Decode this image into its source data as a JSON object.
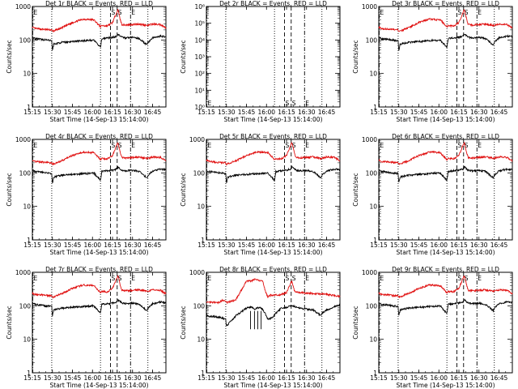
{
  "chart_data": {
    "type": "line",
    "shared": {
      "xlabel": "Start Time (14-Sep-13 15:14:00)",
      "ylabel": "Counts/sec",
      "xlim": [
        0,
        100
      ],
      "xticks": [
        {
          "v": 0,
          "label": "15:15"
        },
        {
          "v": 15,
          "label": "15:30"
        },
        {
          "v": 30,
          "label": "15:45"
        },
        {
          "v": 45,
          "label": "16:00"
        },
        {
          "v": 60,
          "label": "16:15"
        },
        {
          "v": 75,
          "label": "16:30"
        },
        {
          "v": 90,
          "label": "16:45"
        }
      ],
      "markers": [
        {
          "v": 0.3,
          "label": "E",
          "style": "dashdot"
        },
        {
          "v": 14.5,
          "label": "",
          "style": "dotted"
        },
        {
          "v": 51,
          "label": "",
          "style": "dotted"
        },
        {
          "v": 58.5,
          "label": "S",
          "style": "dashed"
        },
        {
          "v": 63.5,
          "label": "S",
          "style": "dashed"
        },
        {
          "v": 73.5,
          "label": "E",
          "style": "dashdot"
        },
        {
          "v": 86.5,
          "label": "",
          "style": "dotted"
        }
      ]
    },
    "panels": [
      {
        "title": "Det 1r BLACK = Events, RED = LLD",
        "variant": "normal",
        "ylog": true,
        "ylim": [
          1,
          1000
        ],
        "yticks": [
          {
            "v": 1,
            "label": "1"
          },
          {
            "v": 10,
            "label": "10"
          },
          {
            "v": 100,
            "label": "100"
          },
          {
            "v": 1000,
            "label": "1000"
          }
        ]
      },
      {
        "title": "Det 2r BLACK = Events, RED = LLD",
        "variant": "empty",
        "ylog": true,
        "ylim": [
          1,
          1000000
        ],
        "yticks": [
          {
            "v": 1,
            "label": "10⁰"
          },
          {
            "v": 10,
            "label": "10¹"
          },
          {
            "v": 100,
            "label": "10²"
          },
          {
            "v": 1000,
            "label": "10³"
          },
          {
            "v": 10000,
            "label": "10⁴"
          },
          {
            "v": 100000,
            "label": "10⁵"
          },
          {
            "v": 1000000,
            "label": "10⁶"
          }
        ]
      },
      {
        "title": "Det 3r BLACK = Events, RED = LLD",
        "variant": "normal",
        "ylog": true,
        "ylim": [
          1,
          1000
        ],
        "yticks": [
          {
            "v": 1,
            "label": "1"
          },
          {
            "v": 10,
            "label": "10"
          },
          {
            "v": 100,
            "label": "100"
          },
          {
            "v": 1000,
            "label": "1000"
          }
        ]
      },
      {
        "title": "Det 4r BLACK = Events, RED = LLD",
        "variant": "normal",
        "ylog": true,
        "ylim": [
          1,
          1000
        ],
        "yticks": [
          {
            "v": 1,
            "label": "1"
          },
          {
            "v": 10,
            "label": "10"
          },
          {
            "v": 100,
            "label": "100"
          },
          {
            "v": 1000,
            "label": "1000"
          }
        ]
      },
      {
        "title": "Det 5r BLACK = Events, RED = LLD",
        "variant": "normal",
        "ylog": true,
        "ylim": [
          1,
          1000
        ],
        "yticks": [
          {
            "v": 1,
            "label": "1"
          },
          {
            "v": 10,
            "label": "10"
          },
          {
            "v": 100,
            "label": "100"
          },
          {
            "v": 1000,
            "label": "1000"
          }
        ]
      },
      {
        "title": "Det 6r BLACK = Events, RED = LLD",
        "variant": "normal",
        "ylog": true,
        "ylim": [
          1,
          1000
        ],
        "yticks": [
          {
            "v": 1,
            "label": "1"
          },
          {
            "v": 10,
            "label": "10"
          },
          {
            "v": 100,
            "label": "100"
          },
          {
            "v": 1000,
            "label": "1000"
          }
        ]
      },
      {
        "title": "Det 7r BLACK = Events, RED = LLD",
        "variant": "normal",
        "ylog": true,
        "ylim": [
          1,
          1000
        ],
        "yticks": [
          {
            "v": 1,
            "label": "1"
          },
          {
            "v": 10,
            "label": "10"
          },
          {
            "v": 100,
            "label": "100"
          },
          {
            "v": 1000,
            "label": "1000"
          }
        ]
      },
      {
        "title": "Det 8r BLACK = Events, RED = LLD",
        "variant": "noisy",
        "ylog": true,
        "ylim": [
          1,
          1000
        ],
        "yticks": [
          {
            "v": 1,
            "label": "1"
          },
          {
            "v": 10,
            "label": "10"
          },
          {
            "v": 100,
            "label": "100"
          },
          {
            "v": 1000,
            "label": "1000"
          }
        ]
      },
      {
        "title": "Det 9r BLACK = Events, RED = LLD",
        "variant": "normal",
        "ylog": true,
        "ylim": [
          1,
          1000
        ],
        "yticks": [
          {
            "v": 1,
            "label": "1"
          },
          {
            "v": 10,
            "label": "10"
          },
          {
            "v": 100,
            "label": "100"
          },
          {
            "v": 1000,
            "label": "1000"
          }
        ]
      }
    ],
    "series_profile": {
      "lld": {
        "x": [
          0,
          2,
          10,
          14.5,
          15,
          22,
          30,
          38,
          46,
          51,
          52,
          56,
          60,
          63,
          64,
          65,
          66,
          67,
          70,
          75,
          80,
          86,
          90,
          96,
          100
        ],
        "y": [
          240,
          220,
          205,
          200,
          180,
          230,
          330,
          420,
          400,
          250,
          270,
          260,
          330,
          650,
          800,
          560,
          380,
          290,
          280,
          290,
          300,
          270,
          300,
          290,
          230
        ]
      },
      "events": {
        "x": [
          0,
          2,
          10,
          14.5,
          15,
          16,
          22,
          30,
          38,
          46,
          51,
          52,
          56,
          60,
          63,
          64,
          65,
          66,
          67,
          70,
          75,
          80,
          86,
          86.5,
          90,
          96,
          100
        ],
        "y": [
          120,
          110,
          100,
          95,
          50,
          75,
          85,
          90,
          95,
          100,
          60,
          110,
          115,
          120,
          130,
          150,
          140,
          130,
          120,
          115,
          120,
          110,
          70,
          85,
          115,
          130,
          125
        ]
      },
      "noisy_lld": {
        "x": [
          0,
          10,
          12,
          13,
          15,
          22,
          30,
          34,
          36,
          38,
          40,
          42,
          44,
          46,
          48,
          50,
          52,
          55,
          60,
          63,
          64,
          66,
          70,
          80,
          90,
          100
        ],
        "y": [
          130,
          125,
          150,
          145,
          125,
          150,
          550,
          550,
          620,
          600,
          560,
          580,
          280,
          180,
          210,
          200,
          210,
          210,
          250,
          480,
          560,
          270,
          250,
          230,
          220,
          190
        ]
      },
      "noisy_events": {
        "x": [
          0,
          10,
          14.5,
          15,
          22,
          30,
          34,
          36,
          38,
          40,
          42,
          44,
          46,
          50,
          52,
          56,
          60,
          64,
          70,
          80,
          86,
          86.5,
          90,
          100
        ],
        "y": [
          50,
          45,
          40,
          25,
          50,
          85,
          90,
          80,
          85,
          90,
          80,
          60,
          40,
          45,
          60,
          85,
          90,
          100,
          85,
          75,
          50,
          60,
          75,
          110
        ]
      }
    }
  }
}
